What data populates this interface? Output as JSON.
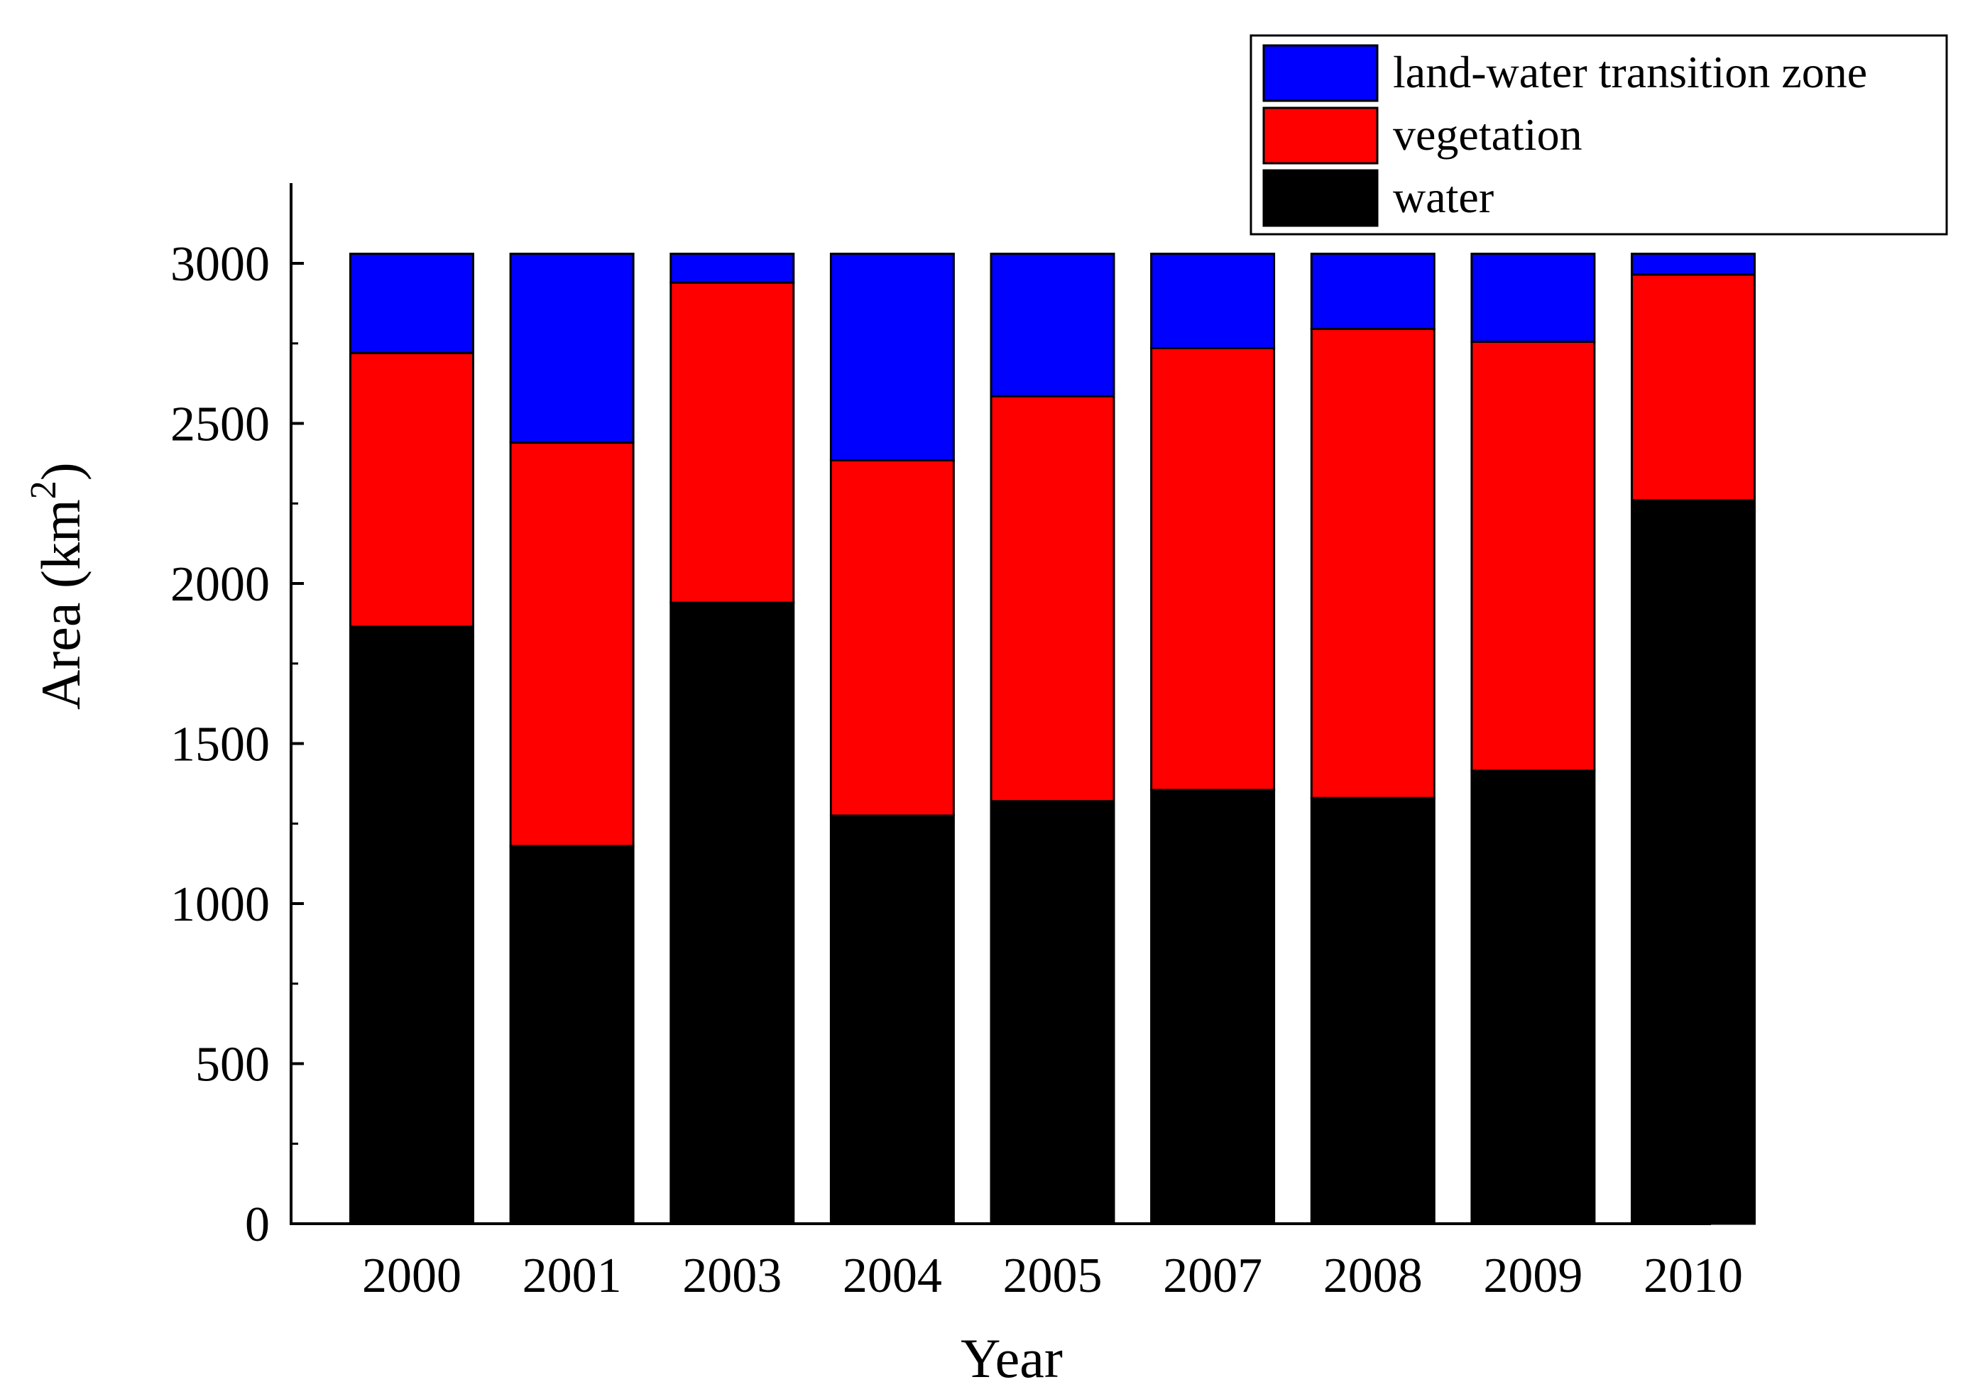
{
  "chart_data": {
    "type": "bar",
    "stacked": true,
    "categories": [
      "2000",
      "2001",
      "2003",
      "2004",
      "2005",
      "2007",
      "2008",
      "2009",
      "2010"
    ],
    "series": [
      {
        "name": "water",
        "color": "#000000",
        "values": [
          1865,
          1180,
          1940,
          1275,
          1320,
          1355,
          1330,
          1415,
          2260
        ]
      },
      {
        "name": "vegetation",
        "color": "#ff0000",
        "values": [
          855,
          1260,
          1000,
          1110,
          1265,
          1380,
          1465,
          1340,
          705
        ]
      },
      {
        "name": "land-water transition zone",
        "color": "#0000ff",
        "values": [
          310,
          590,
          90,
          645,
          445,
          295,
          235,
          275,
          65
        ]
      }
    ],
    "xlabel": "Year",
    "ylabel": "Area (km",
    "ylabel_superscript": "2",
    "ylabel_close": ")",
    "ylim": [
      0,
      3250
    ],
    "yticks": [
      "0",
      "500",
      "1000",
      "1500",
      "2000",
      "2500",
      "3000"
    ],
    "legend": {
      "position": "top-right",
      "entries": [
        "land-water transition zone",
        "vegetation",
        "water"
      ]
    }
  }
}
